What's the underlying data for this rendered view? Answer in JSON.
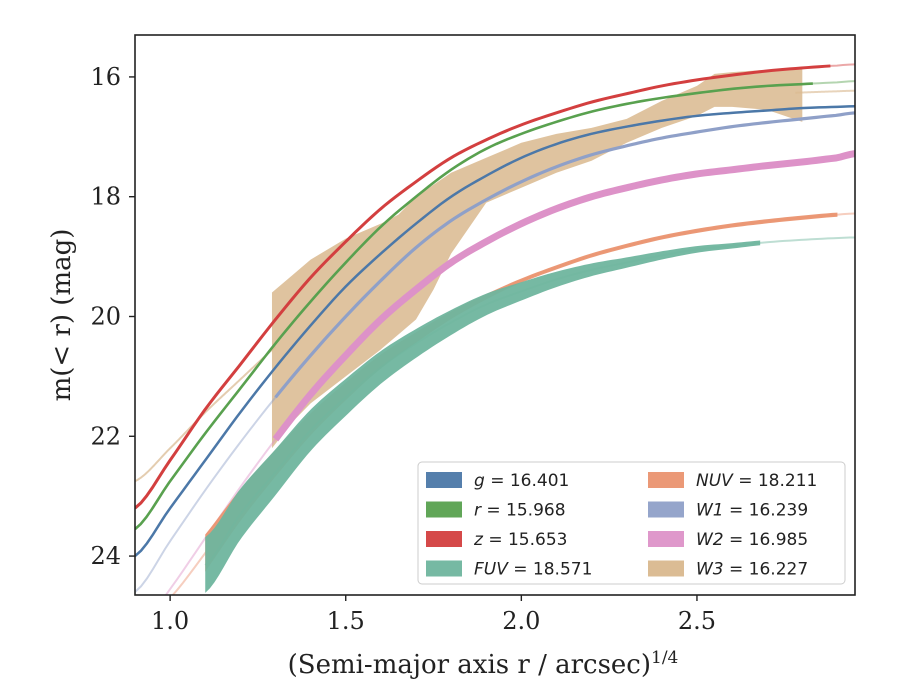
{
  "chart_data": {
    "type": "line",
    "xlabel": "(Semi-major axis r / arcsec)",
    "xlabel_superscript": "1/4",
    "ylabel": "m(< r) (mag)",
    "xlim": [
      0.9,
      2.95
    ],
    "ylim": [
      24.65,
      15.3
    ],
    "y_inverted": true,
    "x_ticks": [
      1.0,
      1.5,
      2.0,
      2.5
    ],
    "x_tick_labels": [
      "1.0",
      "1.5",
      "2.0",
      "2.5"
    ],
    "y_ticks": [
      16,
      18,
      20,
      22,
      24
    ],
    "y_tick_labels": [
      "16",
      "18",
      "20",
      "22",
      "24"
    ],
    "grid": false,
    "legend_position": "lower-right",
    "legend_columns": 2,
    "series": [
      {
        "name": "g = 16.401",
        "color": "#4c78a8",
        "x": [
          0.9,
          1.0,
          1.1,
          1.2,
          1.3,
          1.4,
          1.5,
          1.6,
          1.7,
          1.8,
          1.9,
          2.0,
          2.1,
          2.2,
          2.3,
          2.4,
          2.5,
          2.6,
          2.7,
          2.8,
          2.9,
          2.95
        ],
        "y": [
          24.0,
          23.2,
          22.4,
          21.6,
          20.85,
          20.15,
          19.5,
          18.95,
          18.45,
          18.0,
          17.65,
          17.35,
          17.12,
          16.95,
          16.83,
          16.73,
          16.65,
          16.6,
          16.56,
          16.52,
          16.5,
          16.49
        ],
        "data_end": 2.95
      },
      {
        "name": "r = 15.968",
        "color": "#59a14f",
        "x": [
          0.9,
          1.0,
          1.1,
          1.2,
          1.3,
          1.4,
          1.5,
          1.6,
          1.7,
          1.8,
          1.9,
          2.0,
          2.1,
          2.2,
          2.3,
          2.4,
          2.5,
          2.6,
          2.7,
          2.8,
          2.9,
          2.95
        ],
        "y": [
          23.55,
          22.75,
          21.95,
          21.2,
          20.45,
          19.75,
          19.1,
          18.5,
          18.0,
          17.55,
          17.2,
          16.95,
          16.75,
          16.58,
          16.45,
          16.35,
          16.27,
          16.2,
          16.15,
          16.12,
          16.09,
          16.07
        ],
        "data_end": 2.83
      },
      {
        "name": "z = 15.653",
        "color": "#d33f3f",
        "x": [
          0.9,
          1.0,
          1.1,
          1.2,
          1.3,
          1.4,
          1.5,
          1.6,
          1.7,
          1.8,
          1.9,
          2.0,
          2.1,
          2.2,
          2.3,
          2.4,
          2.5,
          2.6,
          2.7,
          2.8,
          2.9,
          2.95
        ],
        "y": [
          23.2,
          22.4,
          21.55,
          20.8,
          20.05,
          19.35,
          18.75,
          18.2,
          17.75,
          17.35,
          17.05,
          16.8,
          16.6,
          16.42,
          16.28,
          16.15,
          16.05,
          15.97,
          15.9,
          15.85,
          15.81,
          15.79
        ],
        "data_end": 2.88
      },
      {
        "name": "FUV = 18.571",
        "color": "#6fb59e",
        "x": [
          1.1,
          1.2,
          1.3,
          1.4,
          1.5,
          1.6,
          1.7,
          1.8,
          1.9,
          2.0,
          2.1,
          2.2,
          2.3,
          2.4,
          2.5,
          2.6,
          2.7,
          2.8,
          2.9,
          2.95
        ],
        "y": [
          24.15,
          23.3,
          22.6,
          21.9,
          21.35,
          20.85,
          20.45,
          20.1,
          19.8,
          19.58,
          19.38,
          19.22,
          19.1,
          18.98,
          18.88,
          18.82,
          18.76,
          18.72,
          18.69,
          18.68
        ],
        "data_end": 2.68
      },
      {
        "name": "NUV = 18.211",
        "color": "#ea9370",
        "x": [
          0.9,
          1.0,
          1.1,
          1.2,
          1.3,
          1.4,
          1.5,
          1.6,
          1.7,
          1.8,
          1.9,
          2.0,
          2.1,
          2.2,
          2.3,
          2.4,
          2.5,
          2.6,
          2.7,
          2.8,
          2.9,
          2.95
        ],
        "y": [
          25.2,
          24.7,
          23.95,
          23.15,
          22.45,
          21.8,
          21.25,
          20.75,
          20.35,
          19.98,
          19.67,
          19.4,
          19.18,
          18.98,
          18.82,
          18.68,
          18.57,
          18.48,
          18.41,
          18.35,
          18.3,
          18.28
        ],
        "data_end": 2.9
      },
      {
        "name": "W1 = 16.239",
        "color": "#8fa0c8",
        "x": [
          0.9,
          1.0,
          1.1,
          1.2,
          1.3,
          1.4,
          1.5,
          1.6,
          1.7,
          1.8,
          1.9,
          2.0,
          2.1,
          2.2,
          2.3,
          2.4,
          2.5,
          2.6,
          2.7,
          2.8,
          2.9,
          2.95
        ],
        "y": [
          24.6,
          23.75,
          22.9,
          22.1,
          21.35,
          20.65,
          20.0,
          19.4,
          18.85,
          18.4,
          18.05,
          17.75,
          17.5,
          17.3,
          17.15,
          17.02,
          16.92,
          16.83,
          16.76,
          16.7,
          16.64,
          16.6
        ],
        "data_end": 2.95
      },
      {
        "name": "W2 = 16.985",
        "color": "#dd92c8",
        "x": [
          0.9,
          1.0,
          1.1,
          1.2,
          1.3,
          1.4,
          1.5,
          1.6,
          1.7,
          1.8,
          1.9,
          2.0,
          2.1,
          2.2,
          2.3,
          2.4,
          2.5,
          2.6,
          2.7,
          2.8,
          2.9,
          2.95
        ],
        "y": [
          25.3,
          24.55,
          23.7,
          22.85,
          22.05,
          21.3,
          20.65,
          20.05,
          19.55,
          19.1,
          18.75,
          18.45,
          18.2,
          18.0,
          17.85,
          17.72,
          17.62,
          17.55,
          17.48,
          17.42,
          17.35,
          17.28
        ],
        "data_end": 2.95
      },
      {
        "name": "W3 = 16.227",
        "color": "#d9b88e",
        "style": "band",
        "x": [
          0.9,
          1.0,
          1.1,
          1.2,
          1.3,
          1.4,
          1.5,
          1.6,
          1.7,
          1.8,
          1.9,
          2.0,
          2.1,
          2.2,
          2.3,
          2.4,
          2.5,
          2.6,
          2.7,
          2.8,
          2.9,
          2.95
        ],
        "y": [
          22.75,
          22.2,
          21.6,
          21.05,
          20.5,
          19.95,
          19.4,
          18.95,
          18.55,
          18.2,
          17.85,
          17.55,
          17.3,
          17.1,
          16.9,
          16.65,
          16.4,
          16.3,
          16.28,
          16.26,
          16.24,
          16.23
        ],
        "data_start": 1.29,
        "data_end": 2.8,
        "band_x": [
          1.29,
          1.35,
          1.4,
          1.5,
          1.6,
          1.65,
          1.7,
          1.75,
          1.8,
          1.9,
          2.0,
          2.1,
          2.2,
          2.3,
          2.4,
          2.5,
          2.55,
          2.6,
          2.7,
          2.8
        ],
        "band_upper": [
          19.6,
          19.3,
          19.05,
          18.7,
          18.45,
          18.3,
          18.0,
          17.8,
          17.6,
          17.35,
          17.1,
          16.95,
          16.85,
          16.7,
          16.4,
          16.15,
          15.95,
          15.92,
          15.88,
          15.85
        ],
        "band_lower": [
          22.2,
          21.75,
          21.45,
          21.0,
          20.55,
          20.3,
          20.05,
          19.55,
          18.95,
          18.1,
          17.85,
          17.6,
          17.4,
          17.1,
          16.85,
          16.65,
          16.5,
          16.5,
          16.55,
          16.75
        ]
      }
    ]
  },
  "legend": {
    "entries": [
      {
        "symbol": "g",
        "value": " = 16.401",
        "color": "#4c78a8"
      },
      {
        "symbol": "r",
        "value": " = 15.968",
        "color": "#59a14f"
      },
      {
        "symbol": "z",
        "value": " = 15.653",
        "color": "#d33f3f"
      },
      {
        "symbol": "FUV",
        "value": " = 18.571",
        "color": "#6fb59e"
      },
      {
        "symbol": "NUV",
        "value": " = 18.211",
        "color": "#ea9370"
      },
      {
        "symbol": "W1",
        "value": " = 16.239",
        "color": "#8fa0c8"
      },
      {
        "symbol": "W2",
        "value": " = 16.985",
        "color": "#dd92c8"
      },
      {
        "symbol": "W3",
        "value": " = 16.227",
        "color": "#d9b88e"
      }
    ]
  }
}
